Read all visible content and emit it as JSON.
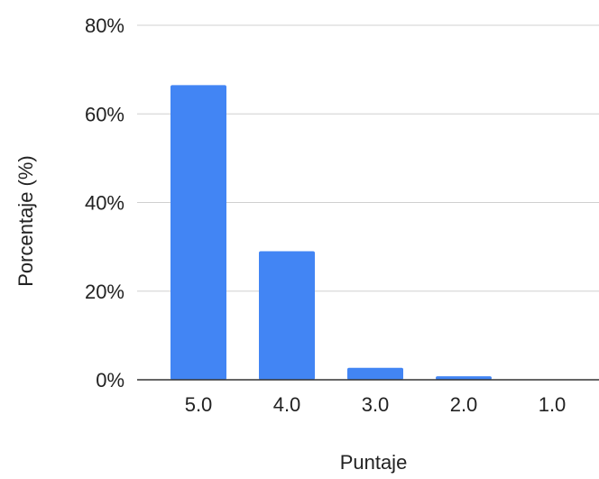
{
  "chart_data": {
    "type": "bar",
    "categories": [
      "5.0",
      "4.0",
      "3.0",
      "2.0",
      "1.0"
    ],
    "values": [
      66.5,
      29,
      2.7,
      0.8,
      0
    ],
    "xlabel": "Puntaje",
    "ylabel": "Porcentaje (%)",
    "ylim": [
      0,
      80
    ],
    "yticks": [
      0,
      20,
      40,
      60,
      80
    ],
    "ytick_labels": [
      "0%",
      "20%",
      "40%",
      "60%",
      "80%"
    ],
    "grid": true,
    "legend": "none",
    "bar_color": "#4285f4"
  }
}
